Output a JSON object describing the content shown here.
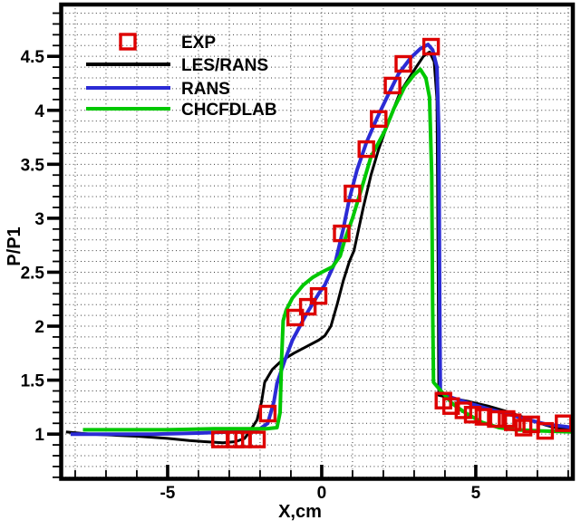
{
  "chart_data": {
    "type": "line",
    "title": "",
    "xlabel": "X,cm",
    "ylabel": "P/P1",
    "xlim": [
      -8.44,
      8.15
    ],
    "ylim": [
      0.59,
      4.98
    ],
    "x_major_ticks": [
      -5,
      0,
      5
    ],
    "x_minor_tick_step": 1,
    "y_major_ticks": [
      1,
      1.5,
      2,
      2.5,
      3,
      3.5,
      4,
      4.5
    ],
    "y_minor_tick_step": 0.1,
    "grid": {
      "style": "dotted",
      "at": "minor-ticks",
      "color": "#3a3a3a"
    },
    "legend": {
      "position": "top-left-inside",
      "frame": false
    },
    "series": [
      {
        "name": "EXP",
        "kind": "scatter",
        "marker": "open-square",
        "color": "#dd0000",
        "marker_size": 16,
        "marker_stroke": 3.4,
        "points": [
          [
            -3.3,
            0.95
          ],
          [
            -2.8,
            0.95
          ],
          [
            -2.55,
            0.95
          ],
          [
            -2.1,
            0.95
          ],
          [
            -1.75,
            1.19
          ],
          [
            -0.86,
            2.08
          ],
          [
            -0.45,
            2.18
          ],
          [
            -0.1,
            2.28
          ],
          [
            0.65,
            2.86
          ],
          [
            1.0,
            3.23
          ],
          [
            1.45,
            3.64
          ],
          [
            1.85,
            3.92
          ],
          [
            2.3,
            4.23
          ],
          [
            2.65,
            4.43
          ],
          [
            3.55,
            4.59
          ],
          [
            3.95,
            1.31
          ],
          [
            4.2,
            1.26
          ],
          [
            4.6,
            1.22
          ],
          [
            4.9,
            1.18
          ],
          [
            5.25,
            1.16
          ],
          [
            5.65,
            1.14
          ],
          [
            6.0,
            1.14
          ],
          [
            6.2,
            1.11
          ],
          [
            6.55,
            1.06
          ],
          [
            6.8,
            1.09
          ],
          [
            7.25,
            1.03
          ],
          [
            7.85,
            1.1
          ]
        ]
      },
      {
        "name": "LES/RANS",
        "kind": "line",
        "color": "#000000",
        "width": 3,
        "points": [
          [
            -8.3,
            1.02
          ],
          [
            -7.5,
            1.0
          ],
          [
            -6.8,
            0.99
          ],
          [
            -6.0,
            0.98
          ],
          [
            -5.0,
            0.96
          ],
          [
            -4.3,
            0.94
          ],
          [
            -3.8,
            0.93
          ],
          [
            -3.2,
            0.92
          ],
          [
            -2.8,
            0.93
          ],
          [
            -2.5,
            0.96
          ],
          [
            -2.35,
            1.02
          ],
          [
            -2.1,
            1.13
          ],
          [
            -1.95,
            1.3
          ],
          [
            -1.85,
            1.48
          ],
          [
            -1.6,
            1.6
          ],
          [
            -1.3,
            1.68
          ],
          [
            -0.9,
            1.75
          ],
          [
            -0.5,
            1.81
          ],
          [
            -0.1,
            1.87
          ],
          [
            0.1,
            1.91
          ],
          [
            0.3,
            2.0
          ],
          [
            0.5,
            2.2
          ],
          [
            0.7,
            2.42
          ],
          [
            0.9,
            2.6
          ],
          [
            1.05,
            2.7
          ],
          [
            1.35,
            3.1
          ],
          [
            1.6,
            3.4
          ],
          [
            1.85,
            3.64
          ],
          [
            2.2,
            3.92
          ],
          [
            2.55,
            4.17
          ],
          [
            2.95,
            4.35
          ],
          [
            3.3,
            4.5
          ],
          [
            3.5,
            4.54
          ],
          [
            3.65,
            4.45
          ],
          [
            3.74,
            4.1
          ],
          [
            3.78,
            2.5
          ],
          [
            3.8,
            1.36
          ],
          [
            4.1,
            1.34
          ],
          [
            4.8,
            1.3
          ],
          [
            5.4,
            1.26
          ],
          [
            6.0,
            1.21
          ],
          [
            6.5,
            1.16
          ],
          [
            6.9,
            1.12
          ],
          [
            7.3,
            1.08
          ],
          [
            7.7,
            1.05
          ],
          [
            8.15,
            1.04
          ]
        ]
      },
      {
        "name": "RANS",
        "kind": "line",
        "color": "#2b2bd5",
        "width": 4,
        "points": [
          [
            -8.15,
            1.0
          ],
          [
            -7.0,
            1.0
          ],
          [
            -5.5,
            1.0
          ],
          [
            -4.0,
            1.01
          ],
          [
            -3.0,
            1.02
          ],
          [
            -2.4,
            1.03
          ],
          [
            -2.0,
            1.05
          ],
          [
            -1.75,
            1.1
          ],
          [
            -1.55,
            1.3
          ],
          [
            -1.45,
            1.47
          ],
          [
            -1.2,
            1.68
          ],
          [
            -0.95,
            1.87
          ],
          [
            -0.5,
            2.11
          ],
          [
            -0.1,
            2.3
          ],
          [
            0.1,
            2.38
          ],
          [
            0.45,
            2.6
          ],
          [
            0.7,
            2.9
          ],
          [
            0.9,
            3.18
          ],
          [
            1.15,
            3.45
          ],
          [
            1.45,
            3.7
          ],
          [
            1.8,
            3.93
          ],
          [
            2.15,
            4.14
          ],
          [
            2.5,
            4.34
          ],
          [
            2.9,
            4.49
          ],
          [
            3.2,
            4.57
          ],
          [
            3.45,
            4.61
          ],
          [
            3.6,
            4.56
          ],
          [
            3.74,
            4.4
          ],
          [
            3.8,
            3.8
          ],
          [
            3.83,
            2.2
          ],
          [
            3.85,
            1.39
          ],
          [
            4.2,
            1.34
          ],
          [
            4.85,
            1.28
          ],
          [
            5.45,
            1.23
          ],
          [
            6.0,
            1.19
          ],
          [
            6.6,
            1.14
          ],
          [
            7.3,
            1.09
          ],
          [
            7.9,
            1.07
          ],
          [
            8.15,
            1.06
          ]
        ]
      },
      {
        "name": "CHCFDLAB",
        "kind": "line",
        "color": "#00c800",
        "width": 4,
        "points": [
          [
            -7.75,
            1.04
          ],
          [
            -6.5,
            1.04
          ],
          [
            -5.0,
            1.04
          ],
          [
            -3.5,
            1.05
          ],
          [
            -2.5,
            1.05
          ],
          [
            -1.8,
            1.05
          ],
          [
            -1.45,
            1.06
          ],
          [
            -1.35,
            1.2
          ],
          [
            -1.3,
            1.7
          ],
          [
            -1.25,
            2.05
          ],
          [
            -1.15,
            2.15
          ],
          [
            -0.95,
            2.26
          ],
          [
            -0.6,
            2.38
          ],
          [
            -0.3,
            2.45
          ],
          [
            0.0,
            2.5
          ],
          [
            0.35,
            2.55
          ],
          [
            0.6,
            2.65
          ],
          [
            0.75,
            2.8
          ],
          [
            1.0,
            3.0
          ],
          [
            1.3,
            3.28
          ],
          [
            1.6,
            3.57
          ],
          [
            2.05,
            3.81
          ],
          [
            2.35,
            4.02
          ],
          [
            2.7,
            4.22
          ],
          [
            3.0,
            4.33
          ],
          [
            3.2,
            4.38
          ],
          [
            3.38,
            4.3
          ],
          [
            3.5,
            4.12
          ],
          [
            3.57,
            3.4
          ],
          [
            3.6,
            2.2
          ],
          [
            3.63,
            1.48
          ],
          [
            3.9,
            1.39
          ],
          [
            4.25,
            1.28
          ],
          [
            4.7,
            1.19
          ],
          [
            5.2,
            1.11
          ],
          [
            5.75,
            1.06
          ],
          [
            6.3,
            1.04
          ],
          [
            7.1,
            1.03
          ],
          [
            8.15,
            1.02
          ]
        ]
      }
    ]
  }
}
